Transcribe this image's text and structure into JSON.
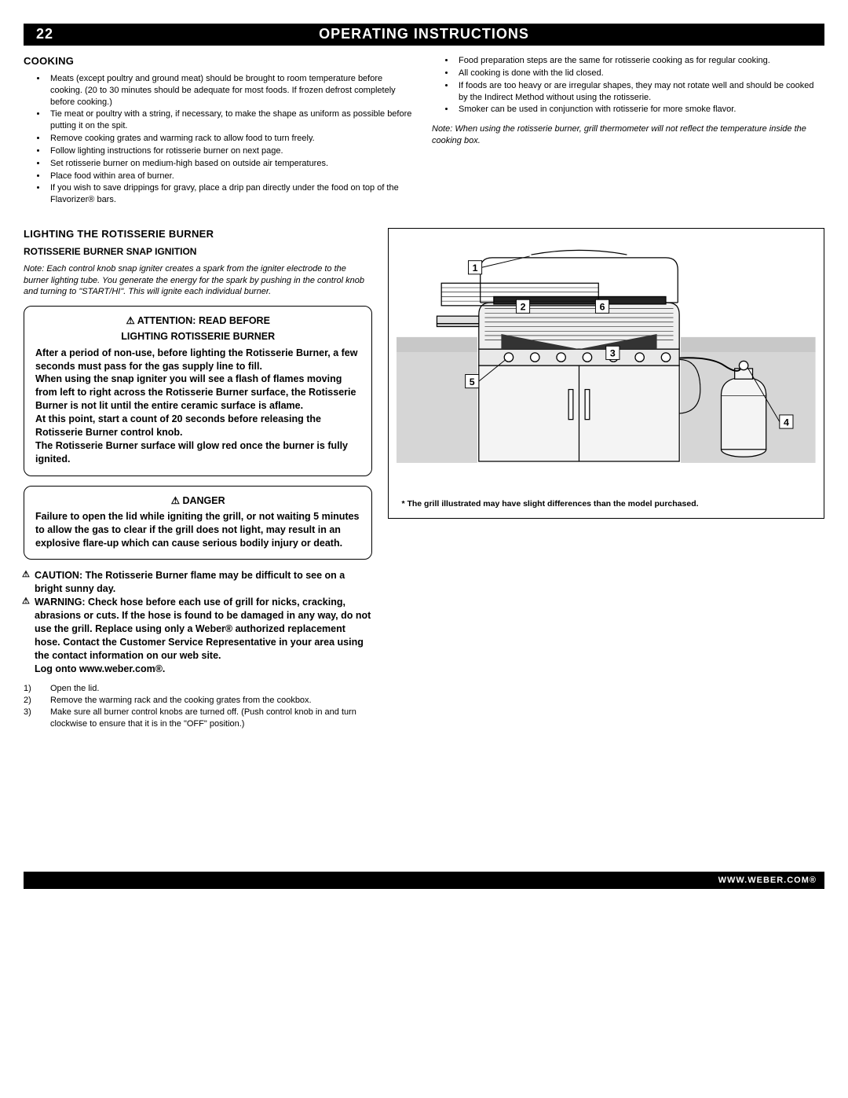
{
  "header": {
    "page_number": "22",
    "title": "OPERATING INSTRUCTIONS"
  },
  "cooking": {
    "heading": "COOKING",
    "left_bullets": [
      "Meats (except poultry and ground meat) should be brought to room temperature before cooking. (20 to 30 minutes should be adequate for most foods. If frozen defrost completely before cooking.)",
      "Tie meat or poultry with a string, if necessary, to make the shape as uniform as possible before putting it on the spit.",
      "Remove cooking grates and warming rack to allow food to turn freely.",
      "Follow lighting instructions for rotisserie burner on next page.",
      "Set rotisserie burner on medium-high based on outside air temperatures.",
      "Place food within area of burner.",
      "If you wish to save drippings for gravy, place a drip pan directly under the food on top of the Flavorizer® bars."
    ],
    "right_bullets": [
      "Food preparation steps are the same for rotisserie cooking as for regular cooking.",
      "All cooking is done with the lid closed.",
      "If foods are too heavy or are irregular shapes, they may not rotate well and should be cooked by the Indirect Method without using the rotisserie.",
      "Smoker can be used in conjunction with rotisserie for more smoke flavor."
    ],
    "right_note": "Note: When using the rotisserie burner, grill thermometer will not reflect the temperature inside the cooking box."
  },
  "lighting": {
    "heading": "LIGHTING THE ROTISSERIE BURNER",
    "sub_heading": "ROTISSERIE BURNER SNAP IGNITION",
    "note": "Note: Each control knob snap igniter creates a spark from the igniter electrode to the burner lighting tube. You generate the energy for the spark by pushing in the control knob and turning to \"START/HI\". This will ignite each individual burner."
  },
  "attention_box": {
    "title_line1": "⚠ ATTENTION: READ BEFORE",
    "title_line2": "LIGHTING ROTISSERIE BURNER",
    "body": "After a period of non-use, before lighting the Rotisserie Burner, a few seconds must pass for the gas supply line to fill.\nWhen using the snap igniter you will see a flash of flames moving from left to right across the Rotisserie Burner surface, the Rotisserie Burner is not lit until the entire ceramic surface is aflame.\nAt this point, start a count of 20 seconds before releasing the Rotisserie Burner control knob.\nThe Rotisserie Burner surface will glow red once the burner is fully ignited."
  },
  "danger_box": {
    "title": "⚠ DANGER",
    "body": "Failure to open the lid while igniting the grill, or not waiting 5 minutes to allow the gas to clear if the grill does not light, may result in an explosive flare-up which can cause serious bodily injury or death."
  },
  "warn_items": [
    "CAUTION: The Rotisserie Burner flame may be difficult to see on a bright sunny day.",
    "WARNING: Check hose before each use of grill for nicks, cracking, abrasions or cuts. If the hose is found to be damaged in any way, do not use the grill. Replace using only a Weber® authorized replacement hose. Contact the Customer Service Representative in your area using the contact information on our web site.\nLog onto www.weber.com®."
  ],
  "steps": [
    "Open the lid.",
    "Remove the warming rack and the cooking grates from the cookbox.",
    "Make sure all burner control knobs are turned off. (Push control knob in and turn clockwise to ensure that it is in the \"OFF\" position.)"
  ],
  "diagram": {
    "callouts": {
      "1": "1",
      "2": "2",
      "3": "3",
      "4": "4",
      "5": "5",
      "6": "6"
    },
    "note": "* The grill illustrated may have slight differences than the model purchased.",
    "colors": {
      "bg_box": "#d6d6d6",
      "line": "#000000",
      "grill_fill": "#f4f4f4",
      "shade": "#bfbfbf"
    }
  },
  "footer": {
    "text": "WWW.WEBER.COM®"
  }
}
